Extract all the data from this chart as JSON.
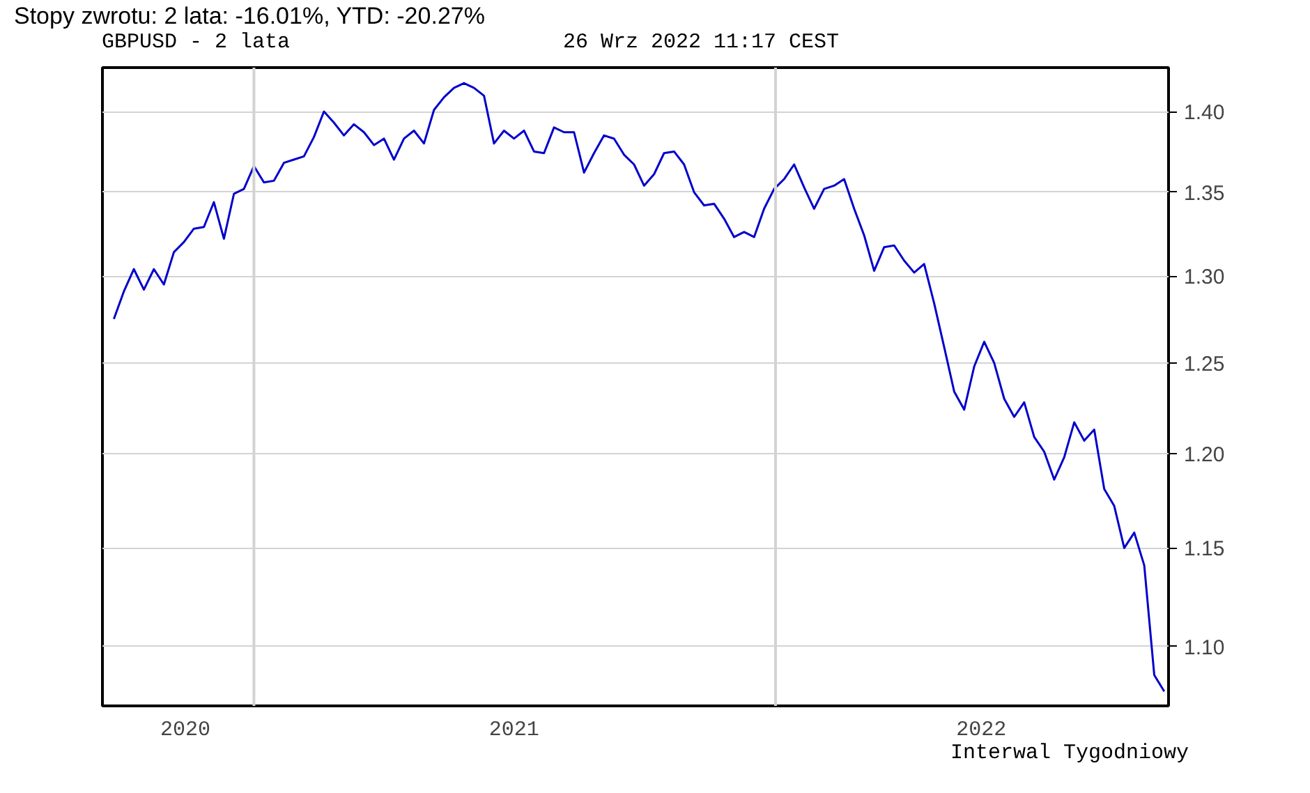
{
  "chart_data": {
    "type": "line",
    "title": "Stopy zwrotu: 2 lata: -16.01%, YTD: -20.27%",
    "subtitle": "GBPUSD - 2 lata",
    "annotations": [
      "26 Wrz 2022 11:17 CEST",
      "Interwal Tygodniowy"
    ],
    "x": [
      "2020-09-25",
      "2020-10-02",
      "2020-10-09",
      "2020-10-16",
      "2020-10-23",
      "2020-10-30",
      "2020-11-06",
      "2020-11-13",
      "2020-11-20",
      "2020-11-27",
      "2020-12-04",
      "2020-12-11",
      "2020-12-18",
      "2020-12-25",
      "2021-01-01",
      "2021-01-08",
      "2021-01-15",
      "2021-01-22",
      "2021-01-29",
      "2021-02-05",
      "2021-02-12",
      "2021-02-19",
      "2021-02-26",
      "2021-03-05",
      "2021-03-12",
      "2021-03-19",
      "2021-03-26",
      "2021-04-02",
      "2021-04-09",
      "2021-04-16",
      "2021-04-23",
      "2021-04-30",
      "2021-05-07",
      "2021-05-14",
      "2021-05-21",
      "2021-05-28",
      "2021-06-04",
      "2021-06-11",
      "2021-06-18",
      "2021-06-25",
      "2021-07-02",
      "2021-07-09",
      "2021-07-16",
      "2021-07-23",
      "2021-07-30",
      "2021-08-06",
      "2021-08-13",
      "2021-08-20",
      "2021-08-27",
      "2021-09-03",
      "2021-09-10",
      "2021-09-17",
      "2021-09-24",
      "2021-10-01",
      "2021-10-08",
      "2021-10-15",
      "2021-10-22",
      "2021-10-29",
      "2021-11-05",
      "2021-11-12",
      "2021-11-19",
      "2021-11-26",
      "2021-12-03",
      "2021-12-10",
      "2021-12-17",
      "2021-12-24",
      "2021-12-31",
      "2022-01-07",
      "2022-01-14",
      "2022-01-21",
      "2022-01-28",
      "2022-02-04",
      "2022-02-11",
      "2022-02-18",
      "2022-02-25",
      "2022-03-04",
      "2022-03-11",
      "2022-03-18",
      "2022-03-25",
      "2022-04-01",
      "2022-04-08",
      "2022-04-15",
      "2022-04-22",
      "2022-04-29",
      "2022-05-06",
      "2022-05-13",
      "2022-05-20",
      "2022-05-27",
      "2022-06-03",
      "2022-06-10",
      "2022-06-17",
      "2022-06-24",
      "2022-07-01",
      "2022-07-08",
      "2022-07-15",
      "2022-07-22",
      "2022-07-29",
      "2022-08-05",
      "2022-08-12",
      "2022-08-19",
      "2022-08-26",
      "2022-09-02",
      "2022-09-09",
      "2022-09-16",
      "2022-09-23",
      "2022-09-30"
    ],
    "series": [
      {
        "color": "#0000cc",
        "values": [
          1.275,
          1.291,
          1.304,
          1.292,
          1.304,
          1.295,
          1.314,
          1.32,
          1.328,
          1.329,
          1.344,
          1.322,
          1.349,
          1.352,
          1.366,
          1.356,
          1.357,
          1.368,
          1.37,
          1.372,
          1.384,
          1.4,
          1.393,
          1.385,
          1.392,
          1.387,
          1.379,
          1.383,
          1.37,
          1.383,
          1.388,
          1.38,
          1.401,
          1.409,
          1.415,
          1.418,
          1.415,
          1.41,
          1.38,
          1.388,
          1.383,
          1.388,
          1.375,
          1.374,
          1.39,
          1.387,
          1.387,
          1.362,
          1.374,
          1.385,
          1.383,
          1.373,
          1.367,
          1.354,
          1.361,
          1.374,
          1.375,
          1.367,
          1.35,
          1.342,
          1.343,
          1.334,
          1.323,
          1.326,
          1.323,
          1.34,
          1.352,
          1.358,
          1.367,
          1.353,
          1.34,
          1.352,
          1.354,
          1.358,
          1.34,
          1.324,
          1.303,
          1.317,
          1.318,
          1.309,
          1.302,
          1.307,
          1.284,
          1.259,
          1.234,
          1.224,
          1.248,
          1.262,
          1.25,
          1.23,
          1.22,
          1.228,
          1.209,
          1.201,
          1.186,
          1.198,
          1.217,
          1.207,
          1.213,
          1.181,
          1.172,
          1.15,
          1.158,
          1.141,
          1.086,
          1.078
        ]
      }
    ],
    "xlim": [
      "2020-09-17",
      "2022-10-03"
    ],
    "xticks": [
      {
        "value": "2020-11-14",
        "label": "2020"
      },
      {
        "value": "2021-07-02",
        "label": "2021"
      },
      {
        "value": "2022-05-25",
        "label": "2022"
      }
    ],
    "ylim": [
      1.071,
      1.428
    ],
    "yticks": [
      {
        "value": 1.1,
        "label": "1.10"
      },
      {
        "value": 1.15,
        "label": "1.15"
      },
      {
        "value": 1.2,
        "label": "1.20"
      },
      {
        "value": 1.25,
        "label": "1.25"
      },
      {
        "value": 1.3,
        "label": "1.30"
      },
      {
        "value": 1.35,
        "label": "1.35"
      },
      {
        "value": 1.4,
        "label": "1.40"
      }
    ],
    "log": true,
    "grid": "y",
    "ref_lines": [
      {
        "axis": "x",
        "value": "2021-01-01",
        "color": "#d3d3d3"
      },
      {
        "axis": "x",
        "value": "2022-01-01",
        "color": "#d3d3d3"
      }
    ]
  }
}
